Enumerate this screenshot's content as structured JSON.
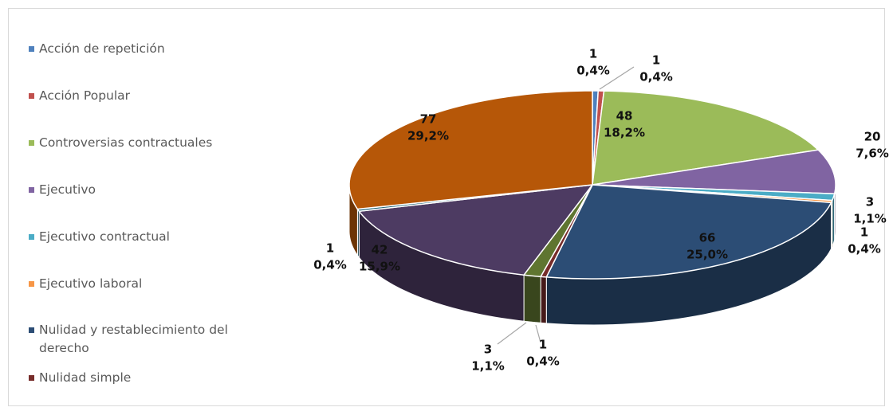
{
  "chart_data": {
    "type": "pie3d",
    "categories": [
      "Acción de repetición",
      "Acción Popular",
      "Controversias contractuales",
      "Ejecutivo",
      "Ejecutivo contractual",
      "Ejecutivo laboral",
      "Nulidad y restablecimiento del derecho",
      "Nulidad simple",
      null,
      null,
      null,
      null
    ],
    "values": [
      1,
      1,
      48,
      20,
      3,
      1,
      66,
      1,
      3,
      42,
      1,
      77
    ],
    "percentages": [
      0.4,
      0.4,
      18.2,
      7.6,
      1.1,
      0.4,
      25.0,
      0.4,
      1.1,
      15.9,
      0.4,
      29.2
    ],
    "percentage_labels": [
      "0,4%",
      "0,4%",
      "18,2%",
      "7,6%",
      "1,1%",
      "0,4%",
      "25,0%",
      "0,4%",
      "1,1%",
      "15,9%",
      "0,4%",
      "29,2%"
    ],
    "colors": [
      "#4f81bd",
      "#c0504d",
      "#9bbb59",
      "#8064a2",
      "#4bacc6",
      "#f79646",
      "#2c4d75",
      "#772c2a",
      "#5f7530",
      "#4d3b62",
      "#276a7c",
      "#b65708"
    ],
    "legend": "left"
  }
}
